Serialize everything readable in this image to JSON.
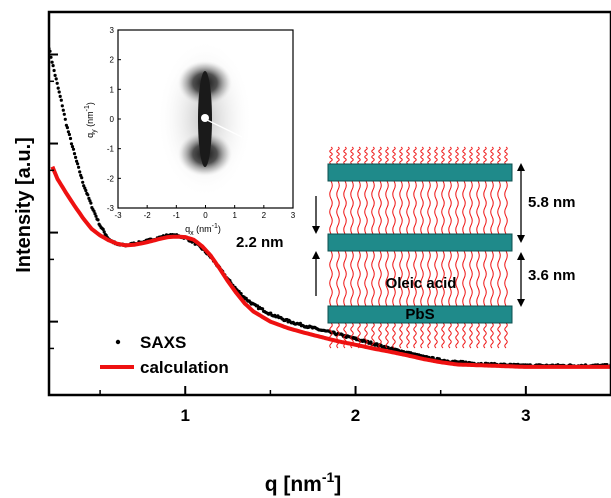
{
  "chart_data": {
    "type": "scatter",
    "xlabel_main": "q [nm",
    "xlabel_sup": "-1",
    "xlabel_close": "]",
    "ylabel": "Intensity [a.u.]",
    "xlim": [
      0.2,
      3.5
    ],
    "x_ticks": [
      1,
      2,
      3
    ],
    "y_scale": "log",
    "y_tick_labels_shown": false,
    "legend_position": "bottom-left",
    "series": [
      {
        "name": "SAXS",
        "style": "markers",
        "color": "#000000",
        "x": [
          0.2,
          0.22,
          0.25,
          0.28,
          0.3,
          0.33,
          0.36,
          0.4,
          0.45,
          0.5,
          0.55,
          0.6,
          0.65,
          0.7,
          0.75,
          0.8,
          0.85,
          0.9,
          0.95,
          1.0,
          1.05,
          1.1,
          1.15,
          1.2,
          1.25,
          1.3,
          1.35,
          1.4,
          1.5,
          1.6,
          1.7,
          1.8,
          1.9,
          2.0,
          2.1,
          2.2,
          2.3,
          2.4,
          2.5,
          2.6,
          2.8,
          3.0,
          3.2,
          3.4,
          3.5
        ],
        "y": [
          1200,
          800,
          450,
          260,
          170,
          105,
          65,
          36,
          20,
          12,
          8.5,
          7.3,
          7.2,
          7.5,
          7.8,
          8.3,
          8.8,
          9.3,
          9.2,
          8.8,
          7.8,
          6.6,
          5.3,
          4.0,
          3.0,
          2.3,
          1.85,
          1.55,
          1.22,
          1.02,
          0.9,
          0.8,
          0.72,
          0.64,
          0.57,
          0.5,
          0.45,
          0.4,
          0.37,
          0.35,
          0.33,
          0.32,
          0.32,
          0.32,
          0.32
        ]
      },
      {
        "name": "calculation",
        "style": "line",
        "color": "#ee1111",
        "x": [
          0.22,
          0.25,
          0.3,
          0.35,
          0.4,
          0.45,
          0.5,
          0.55,
          0.6,
          0.65,
          0.7,
          0.75,
          0.8,
          0.85,
          0.9,
          0.95,
          1.0,
          1.05,
          1.1,
          1.15,
          1.2,
          1.25,
          1.3,
          1.35,
          1.4,
          1.5,
          1.6,
          1.7,
          1.8,
          1.9,
          2.0,
          2.1,
          2.2,
          2.3,
          2.4,
          2.5,
          2.6,
          2.8,
          3.0,
          3.2,
          3.5
        ],
        "y": [
          55,
          40,
          28,
          20,
          14.5,
          11,
          9.3,
          8.2,
          7.5,
          7.2,
          7.3,
          7.6,
          8.0,
          8.5,
          8.9,
          9.0,
          8.9,
          8.3,
          7.0,
          5.5,
          4.0,
          2.85,
          2.1,
          1.6,
          1.3,
          1.0,
          0.85,
          0.75,
          0.67,
          0.6,
          0.55,
          0.5,
          0.46,
          0.42,
          0.38,
          0.35,
          0.33,
          0.32,
          0.31,
          0.31,
          0.31
        ]
      }
    ],
    "inset": {
      "type": "heatmap",
      "xlabel_base": "q",
      "xlabel_sub": "x",
      "xlabel_units": " (nm",
      "xlabel_sup": "-1",
      "xlabel_close": ")",
      "ylabel_base": "q",
      "ylabel_sub": "y",
      "ylabel_units": " (nm",
      "ylabel_sup": "-1",
      "ylabel_close": ")",
      "xlim": [
        -3,
        3
      ],
      "ylim": [
        -3,
        3
      ],
      "x_ticks": [
        -3,
        -2,
        -1,
        0,
        1,
        2,
        3
      ],
      "y_ticks": [
        -3,
        -2,
        -1,
        0,
        1,
        2,
        3
      ],
      "colormap": "grayscale-inverted"
    }
  },
  "schematic": {
    "labels": {
      "period": "5.8 nm",
      "ligand_gap": "2.2 nm",
      "layer_gap": "3.6 nm",
      "ligand_name": "Oleic acid",
      "core_name": "PbS"
    },
    "colors": {
      "layer_fill": "#1f8a8a",
      "ligand_color": "#ee1111"
    }
  }
}
